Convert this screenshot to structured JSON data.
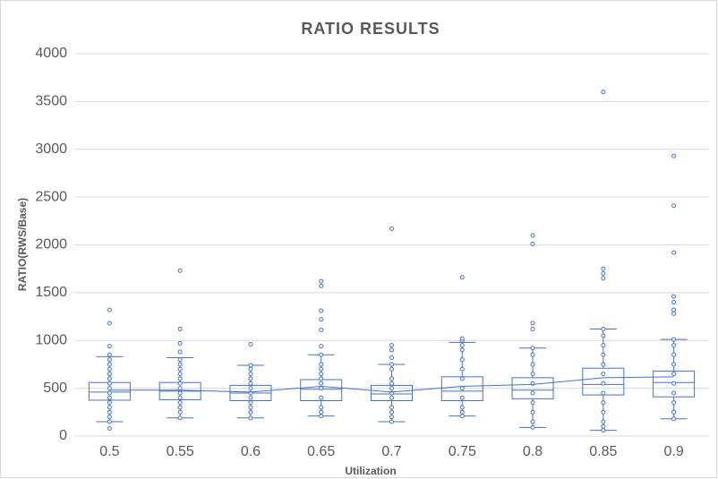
{
  "chart_data": {
    "type": "box",
    "title": "RATIO RESULTS",
    "x_label": "Utilization",
    "y_label": "RATIO(RWS/Base)",
    "categories": [
      "0.5",
      "0.55",
      "0.6",
      "0.65",
      "0.7",
      "0.75",
      "0.8",
      "0.85",
      "0.9"
    ],
    "color": "#4472c4",
    "grid": true,
    "ylim": [
      0,
      4000
    ],
    "yticks": [
      0,
      500,
      1000,
      1500,
      2000,
      2500,
      3000,
      3500,
      4000
    ],
    "boxes": [
      {
        "min": 150,
        "q1": 375,
        "median": 460,
        "q3": 560,
        "max": 830,
        "mean": 480,
        "points": [
          80,
          150,
          200,
          250,
          300,
          350,
          400,
          450,
          500,
          550,
          600,
          650,
          700,
          750,
          800,
          850,
          940,
          1180,
          1320
        ]
      },
      {
        "min": 190,
        "q1": 380,
        "median": 470,
        "q3": 560,
        "max": 820,
        "mean": 480,
        "points": [
          190,
          250,
          300,
          350,
          400,
          450,
          500,
          550,
          600,
          650,
          700,
          750,
          800,
          880,
          970,
          1120,
          1730
        ]
      },
      {
        "min": 190,
        "q1": 370,
        "median": 450,
        "q3": 530,
        "max": 740,
        "mean": 460,
        "points": [
          190,
          250,
          300,
          350,
          400,
          450,
          500,
          550,
          600,
          650,
          700,
          740,
          960
        ]
      },
      {
        "min": 210,
        "q1": 370,
        "median": 490,
        "q3": 590,
        "max": 850,
        "mean": 520,
        "points": [
          210,
          250,
          300,
          400,
          500,
          550,
          600,
          650,
          700,
          750,
          850,
          940,
          1110,
          1220,
          1310,
          1570,
          1620
        ]
      },
      {
        "min": 150,
        "q1": 370,
        "median": 440,
        "q3": 530,
        "max": 750,
        "mean": 460,
        "points": [
          150,
          200,
          250,
          300,
          400,
          450,
          500,
          550,
          600,
          700,
          750,
          820,
          900,
          950,
          2170
        ]
      },
      {
        "min": 210,
        "q1": 370,
        "median": 470,
        "q3": 620,
        "max": 980,
        "mean": 520,
        "points": [
          210,
          250,
          300,
          400,
          500,
          600,
          700,
          800,
          900,
          950,
          1000,
          1020,
          1660
        ]
      },
      {
        "min": 90,
        "q1": 390,
        "median": 480,
        "q3": 610,
        "max": 920,
        "mean": 540,
        "points": [
          90,
          150,
          250,
          350,
          450,
          550,
          650,
          750,
          850,
          920,
          1120,
          1180,
          2010,
          2100
        ]
      },
      {
        "min": 60,
        "q1": 430,
        "median": 540,
        "q3": 710,
        "max": 1120,
        "mean": 610,
        "points": [
          60,
          100,
          150,
          250,
          350,
          450,
          550,
          650,
          750,
          850,
          950,
          1050,
          1120,
          1650,
          1700,
          1750,
          3600
        ]
      },
      {
        "min": 180,
        "q1": 410,
        "median": 560,
        "q3": 680,
        "max": 1010,
        "mean": 620,
        "points": [
          180,
          250,
          350,
          450,
          550,
          650,
          750,
          850,
          950,
          1010,
          1280,
          1320,
          1400,
          1460,
          1920,
          2410,
          2930
        ]
      }
    ]
  }
}
